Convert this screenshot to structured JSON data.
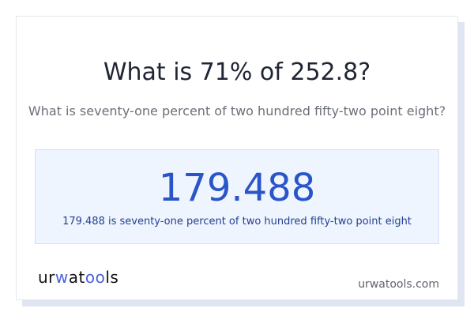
{
  "title": "What is 71% of 252.8?",
  "subtitle": "What is seventy-one percent of two hundred fifty-two point eight?",
  "result": "179.488",
  "result_description": "179.488 is seventy-one percent of two hundred fifty-two point eight",
  "logo": {
    "text_a": "ur",
    "text_b": "w",
    "text_c": "at",
    "text_d": "oo",
    "text_e": "ls"
  },
  "site": "urwatools.com",
  "colors": {
    "accent": "#2a55c9",
    "logo_accent": "#4a62d8"
  }
}
